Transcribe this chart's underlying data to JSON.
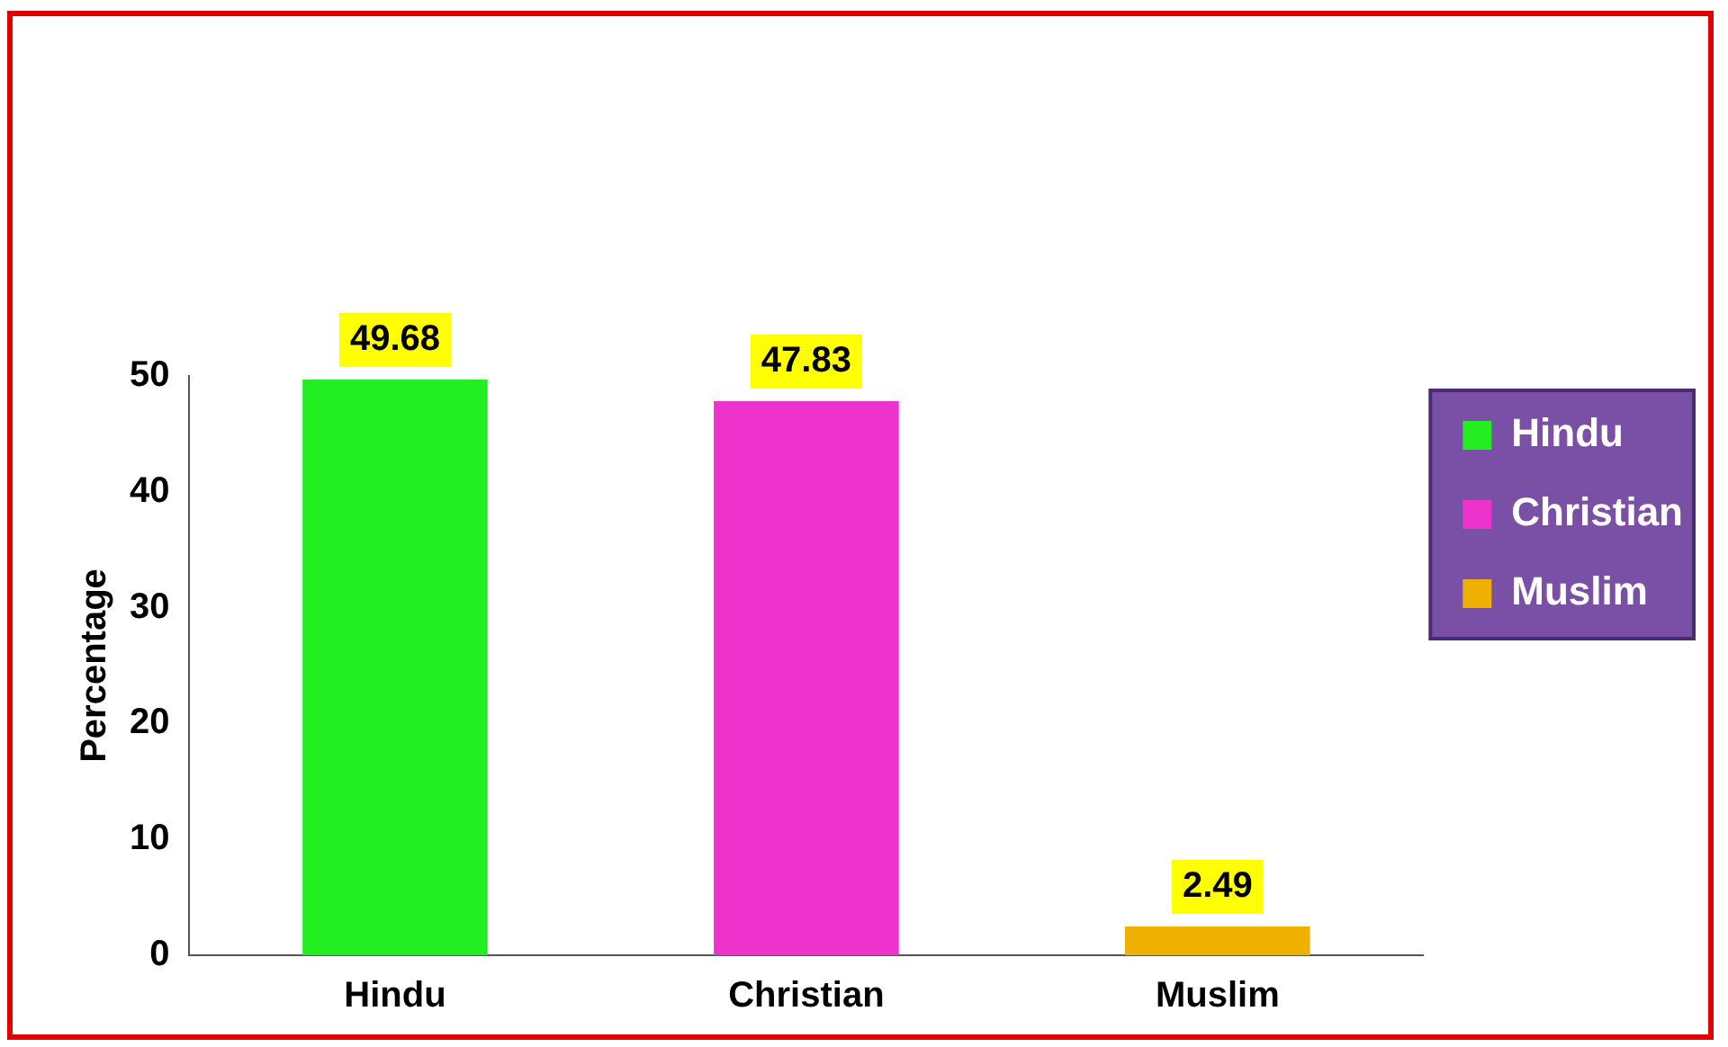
{
  "chart_data": {
    "type": "bar",
    "ylabel": "Percentage",
    "categories": [
      "Hindu",
      "Christian",
      "Muslim"
    ],
    "series": [
      {
        "name": "Hindu",
        "color": "#22ee22",
        "values": [
          49.68,
          null,
          null
        ]
      },
      {
        "name": "Christian",
        "color": "#ee33cc",
        "values": [
          null,
          47.83,
          null
        ]
      },
      {
        "name": "Muslim",
        "color": "#f0b000",
        "values": [
          null,
          null,
          2.49
        ]
      }
    ],
    "ylim": [
      0,
      50
    ],
    "yticks": [
      0,
      10,
      20,
      30,
      40,
      50
    ],
    "grid": false,
    "legend": "right",
    "data_labels": true
  }
}
